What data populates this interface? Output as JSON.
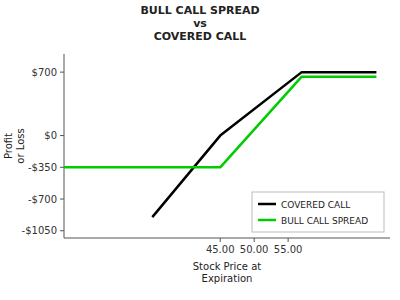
{
  "chart_data": {
    "type": "line",
    "title": "BULL CALL SPREAD\nvs\nCOVERED CALL",
    "x_label": "Stock Price at\nExpiration",
    "y_label": "Profit\nor Loss",
    "series": [
      {
        "name": "COVERED CALL",
        "color": "#000000",
        "x": [
          35,
          45,
          57,
          68
        ],
        "values": [
          -900,
          0,
          700,
          700
        ]
      },
      {
        "name": "BULL CALL SPREAD",
        "color": "#00cc00",
        "x": [
          22,
          45,
          57,
          68
        ],
        "values": [
          -350,
          -350,
          650,
          650
        ]
      }
    ],
    "xlim": [
      22,
      70
    ],
    "ylim": [
      -1130,
      900
    ],
    "xticks": [
      {
        "value": 45,
        "label": "45.00"
      },
      {
        "value": 50,
        "label": "50.00"
      },
      {
        "value": 55,
        "label": "55.00"
      }
    ],
    "yticks": [
      {
        "value": 700,
        "label": "$700"
      },
      {
        "value": 0,
        "label": "$0"
      },
      {
        "value": -350,
        "label": "-$350"
      },
      {
        "value": -700,
        "label": "-$700"
      },
      {
        "value": -1050,
        "label": "-$1050"
      }
    ],
    "grid": false,
    "legend": "lower right"
  }
}
